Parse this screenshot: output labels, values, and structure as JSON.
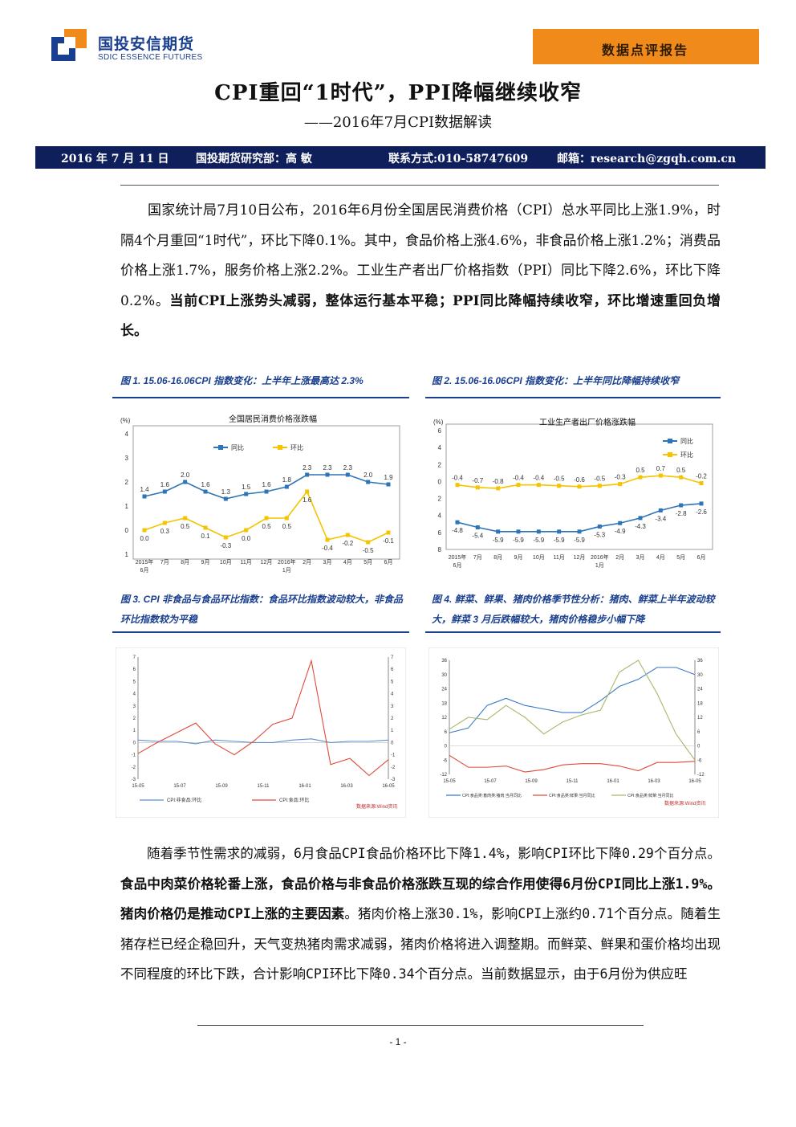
{
  "header": {
    "logo_cn": "国投安信期货",
    "logo_en": "SDIC ESSENCE FUTURES",
    "badge": "数据点评报告",
    "brand_blue": "#1a3f8f",
    "brand_orange": "#f08a1a"
  },
  "title": "CPI重回“1时代”，PPI降幅继续收窄",
  "subtitle": "——2016年7月CPI数据解读",
  "infobar": {
    "date": "2016 年 7 月 11 日",
    "author": "国投期货研究部：高 敏",
    "contact": "联系方式:010-58747609",
    "email": "邮箱：research@zgqh.com.cn"
  },
  "para1": {
    "normal": "国家统计局7月10日公布，2016年6月份全国居民消费价格（CPI）总水平同比上涨1.9%，时隔4个月重回“1时代”，环比下降0.1%。其中，食品价格上涨4.6%，非食品价格上涨1.2%；消费品价格上涨1.7%，服务价格上涨2.2%。工业生产者出厂价格指数（PPI）同比下降2.6%，环比下降0.2%。",
    "bold": "当前CPI上涨势头减弱，整体运行基本平稳；PPI同比降幅持续收窄，环比增速重回负增长。"
  },
  "figures": {
    "fig1_caption": "图 1. 15.06-16.06CPI 指数变化：上半年上涨最高达 2.3%",
    "fig2_caption": "图 2. 15.06-16.06CPI 指数变化：上半年同比降幅持续收窄",
    "fig3_caption": "图 3. CPI 非食品与食品环比指数：食品环比指数波动较大，非食品环比指数较为平稳",
    "fig4_caption": "图 4. 鲜菜、鲜果、猪肉价格季节性分析：猪肉、鲜菜上半年波动较大，鲜菜 3 月后跌幅较大，猪肉价格稳步小幅下降"
  },
  "chart_data": [
    {
      "type": "line",
      "title": "全国居民消费价格涨跌幅",
      "ylabel": "(%)",
      "ylim": [
        -1,
        4
      ],
      "categories": [
        "2015年6月",
        "7月",
        "8月",
        "9月",
        "10月",
        "11月",
        "12月",
        "2016年1月",
        "2月",
        "3月",
        "4月",
        "5月",
        "6月"
      ],
      "series": [
        {
          "name": "同比",
          "color": "#2e75b6",
          "values": [
            1.4,
            1.6,
            2.0,
            1.6,
            1.3,
            1.5,
            1.6,
            1.8,
            2.3,
            2.3,
            2.3,
            2.0,
            1.9
          ]
        },
        {
          "name": "环比",
          "color": "#f5c400",
          "values": [
            0.0,
            0.3,
            0.5,
            0.1,
            -0.3,
            0.0,
            0.5,
            0.5,
            1.6,
            -0.4,
            -0.2,
            -0.5,
            -0.1
          ]
        }
      ],
      "grid": false,
      "legend": "top"
    },
    {
      "type": "line",
      "title": "工业生产者出厂价格涨跌幅",
      "ylabel": "(%)",
      "ylim": [
        -8,
        6
      ],
      "categories": [
        "2015年6月",
        "7月",
        "8月",
        "9月",
        "10月",
        "11月",
        "12月",
        "2016年1月",
        "2月",
        "3月",
        "4月",
        "5月",
        "6月"
      ],
      "series": [
        {
          "name": "同比",
          "color": "#2e75b6",
          "values": [
            -4.8,
            -5.4,
            -5.9,
            -5.9,
            -5.9,
            -5.9,
            -5.9,
            -5.3,
            -4.9,
            -4.3,
            -3.4,
            -2.8,
            -2.6
          ]
        },
        {
          "name": "环比",
          "color": "#f5c400",
          "values": [
            -0.4,
            -0.7,
            -0.8,
            -0.4,
            -0.4,
            -0.5,
            -0.6,
            -0.5,
            -0.3,
            0.5,
            0.7,
            0.5,
            -0.2
          ]
        }
      ],
      "grid": false,
      "legend": "top-right"
    },
    {
      "type": "line",
      "x_ticks": [
        "15-05",
        "15-07",
        "15-09",
        "15-11",
        "16-01",
        "16-03",
        "16-05"
      ],
      "ylim": [
        -3,
        7
      ],
      "series": [
        {
          "name": "CPI:非食品:环比",
          "color": "#5b8fd0",
          "values": [
            0.2,
            0.1,
            0.1,
            -0.1,
            0.2,
            0.1,
            0.0,
            0.0,
            0.2,
            0.3,
            0.0,
            0.1,
            0.1,
            0.2
          ]
        },
        {
          "name": "CPI:食品:环比",
          "color": "#e04a3a",
          "values": [
            -0.9,
            0.0,
            0.8,
            1.6,
            -0.1,
            -1.0,
            0.1,
            1.5,
            2.0,
            6.7,
            -1.8,
            -1.3,
            -2.7,
            -1.4
          ]
        }
      ],
      "source": "数据来源:Wind资讯",
      "legend": "bottom"
    },
    {
      "type": "line",
      "x_ticks": [
        "15-05",
        "15-07",
        "15-09",
        "15-11",
        "16-01",
        "16-03",
        "16-05"
      ],
      "ylim": [
        -12,
        36
      ],
      "series": [
        {
          "name": "CPI:食品类:畜肉类:猪肉:当月同比",
          "color": "#3a78c8",
          "values": [
            5.5,
            7.5,
            17,
            20,
            17,
            15.5,
            14,
            14,
            19,
            25,
            28,
            33,
            33,
            30
          ]
        },
        {
          "name": "CPI:食品类:鲜果:当月同比",
          "color": "#e04a3a",
          "values": [
            -4,
            -9,
            -9,
            -8.5,
            -11,
            -10,
            -8,
            -7.5,
            -7.5,
            -8.5,
            -10.5,
            -7,
            -7,
            -6.5
          ]
        },
        {
          "name": "CPI:食品类:鲜菜:当月同比",
          "color": "#a8b86a",
          "values": [
            7,
            12,
            11,
            17,
            12,
            5,
            10,
            13,
            15,
            31,
            36,
            22,
            5,
            -6
          ]
        }
      ],
      "source": "数据来源:Wind资讯",
      "legend": "bottom"
    }
  ],
  "para2": {
    "n1": "随着季节性需求的减弱，6月食品CPI食品价格环比下降1.4%，影响CPI环比下降0.29个百分点。",
    "b1": "食品中肉菜价格轮番上涨，食品价格与非食品价格涨跌互现的综合作用使得6月份CPI同比上涨1.9%。猪肉价格仍是推动CPI上涨的主要因素",
    "n2": "。猪肉价格上涨30.1%，影响CPI上涨约0.71个百分点。随着生猪存栏已经企稳回升，天气变热猪肉需求减弱，猪肉价格将进入调整期。而鲜菜、鲜果和蛋价格均出现不同程度的环比下跌，合计影响CPI环比下降0.34个百分点。当前数据显示，由于6月份为供应旺"
  },
  "page_number": "- 1 -"
}
